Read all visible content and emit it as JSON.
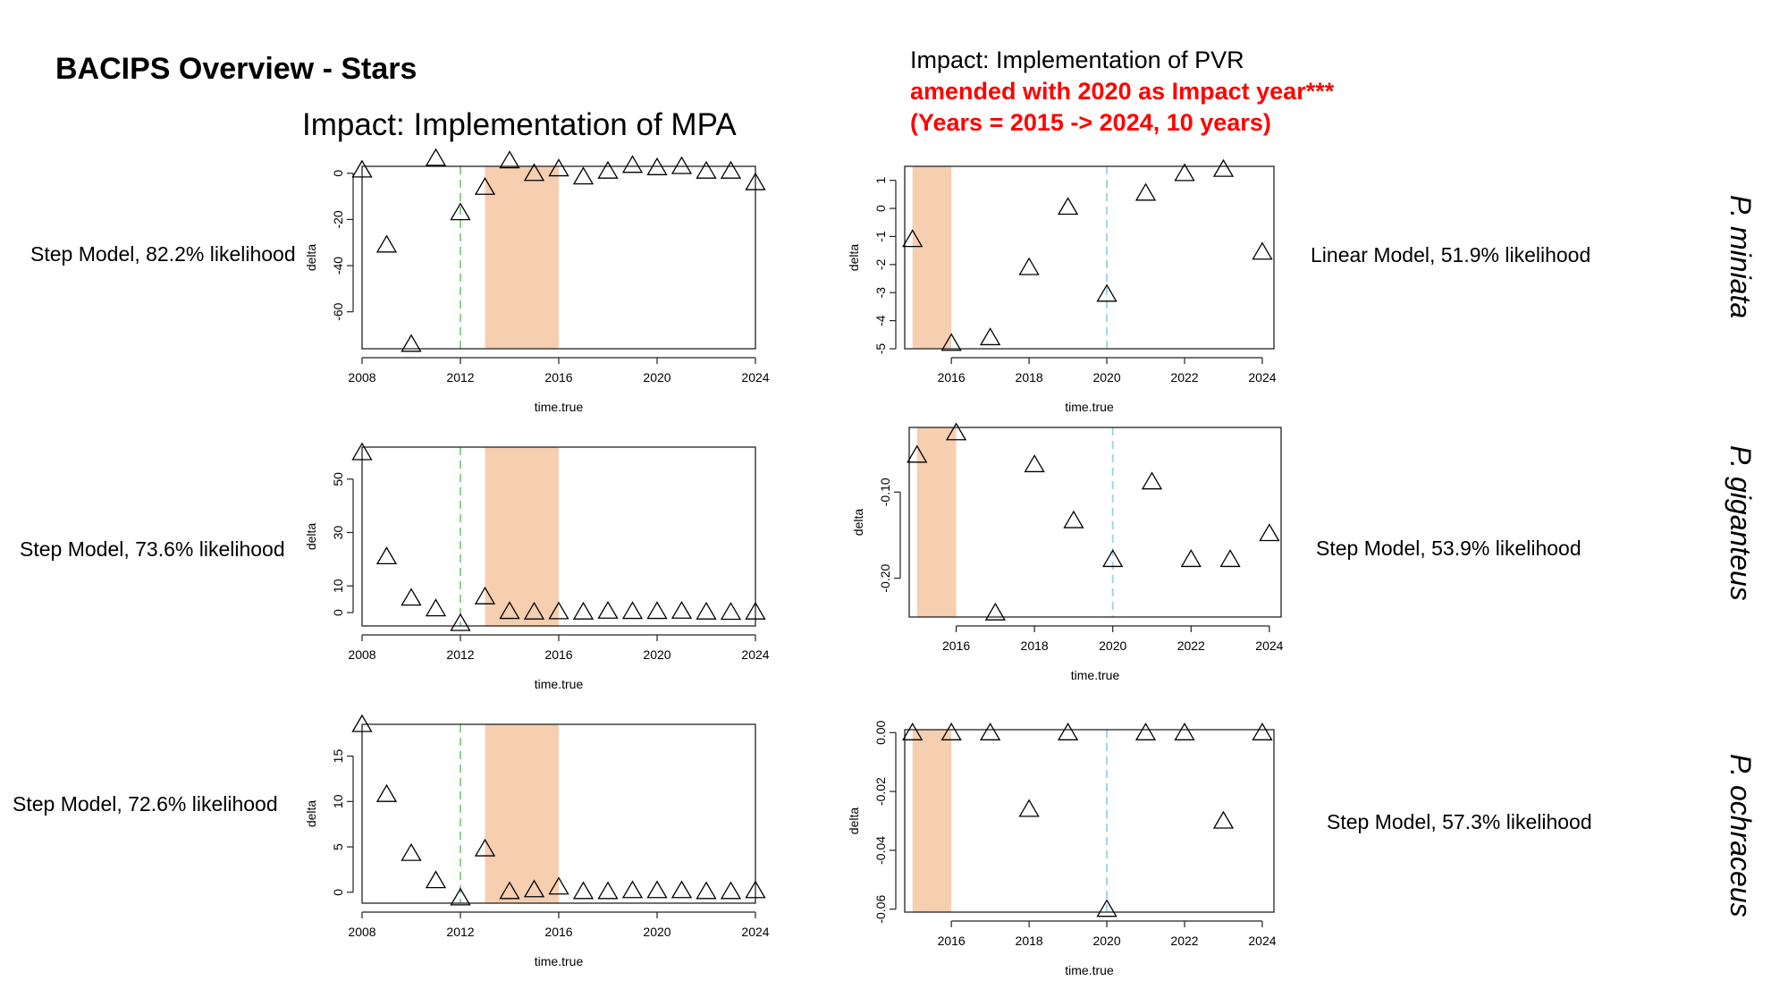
{
  "slide": {
    "title": "BACIPS Overview - Stars",
    "left_heading": "Impact: Implementation of MPA",
    "right_heading_line1": "Impact: Implementation of PVR",
    "right_heading_line2": "amended with 2020 as Impact year***",
    "right_heading_line3": "(Years = 2015 -> 2024, 10 years)"
  },
  "rows": [
    {
      "species": "P. miniata",
      "left_model": "Step Model, 82.2% likelihood",
      "right_model": "Linear Model, 51.9% likelihood"
    },
    {
      "species": "P. giganteus",
      "left_model": "Step Model, 73.6% likelihood",
      "right_model": "Step Model, 53.9% likelihood"
    },
    {
      "species": "P. ochraceus",
      "left_model": "Step Model, 72.6% likelihood",
      "right_model": "Step Model, 57.3% likelihood"
    }
  ],
  "colors": {
    "shaded_period": "#f6ceb0",
    "mpa_impact_line": "#8fcf8f",
    "pvr_impact_line": "#9fd6e6",
    "marker": "#000000"
  },
  "chart_data": [
    {
      "type": "scatter",
      "marker": "open-triangle",
      "xlabel": "time.true",
      "ylabel": "delta",
      "xlim": [
        2008,
        2024
      ],
      "ylim": [
        -76,
        3
      ],
      "xticks": [
        2008,
        2012,
        2016,
        2020,
        2024
      ],
      "xtick_labels": [
        "2008",
        "2012",
        "2016",
        "2020",
        "2024"
      ],
      "yticks": [
        0,
        -20,
        -40,
        -60
      ],
      "ytick_labels": [
        "0",
        "-20",
        "-40",
        "-60"
      ],
      "impact_line_x": 2012,
      "shaded_x": [
        2013,
        2016
      ],
      "x": [
        2008,
        2009,
        2010,
        2011,
        2012,
        2013,
        2014,
        2015,
        2016,
        2017,
        2018,
        2019,
        2020,
        2021,
        2022,
        2023,
        2024
      ],
      "y": [
        1.5,
        -31,
        -74,
        6.5,
        -17,
        -6,
        5.5,
        0,
        2,
        -1.5,
        1,
        3.5,
        2.5,
        3,
        1,
        1,
        -4
      ]
    },
    {
      "type": "scatter",
      "marker": "open-triangle",
      "xlabel": "time.true",
      "ylabel": "delta",
      "xlim": [
        2014.8,
        2024.3
      ],
      "ylim": [
        -5,
        1.5
      ],
      "xticks": [
        2016,
        2018,
        2020,
        2022,
        2024
      ],
      "xtick_labels": [
        "2016",
        "2018",
        "2020",
        "2022",
        "2024"
      ],
      "yticks": [
        1,
        0,
        -1,
        -2,
        -3,
        -4,
        -5
      ],
      "ytick_labels": [
        "1",
        "0",
        "-1",
        "-2",
        "-3",
        "-4",
        "-5"
      ],
      "impact_line_x": 2020,
      "shaded_x": [
        2015,
        2016
      ],
      "x": [
        2015,
        2016,
        2017,
        2018,
        2019,
        2020,
        2021,
        2022,
        2023,
        2024
      ],
      "y": [
        -1.1,
        -4.8,
        -4.6,
        -2.1,
        0.05,
        -3.05,
        0.55,
        1.25,
        1.4,
        -1.55
      ]
    },
    {
      "type": "scatter",
      "marker": "open-triangle",
      "xlabel": "time.true",
      "ylabel": "delta",
      "xlim": [
        2008,
        2024
      ],
      "ylim": [
        -5,
        62
      ],
      "xticks": [
        2008,
        2012,
        2016,
        2020,
        2024
      ],
      "xtick_labels": [
        "2008",
        "2012",
        "2016",
        "2020",
        "2024"
      ],
      "yticks": [
        0,
        10,
        30,
        50
      ],
      "ytick_labels": [
        "0",
        "10",
        "30",
        "50"
      ],
      "impact_line_x": 2012,
      "shaded_x": [
        2013,
        2016
      ],
      "x": [
        2008,
        2009,
        2010,
        2011,
        2012,
        2013,
        2014,
        2015,
        2016,
        2017,
        2018,
        2019,
        2020,
        2021,
        2022,
        2023,
        2024
      ],
      "y": [
        60,
        21,
        5.5,
        1.5,
        -4,
        6,
        0.5,
        0.3,
        0.4,
        0.3,
        0.6,
        0.5,
        0.5,
        0.6,
        0.3,
        0.2,
        0.3
      ]
    },
    {
      "type": "scatter",
      "marker": "open-triangle",
      "xlabel": "time.true",
      "ylabel": "delta",
      "xlim": [
        2014.8,
        2024.3
      ],
      "ylim": [
        -0.245,
        -0.025
      ],
      "xticks": [
        2016,
        2018,
        2020,
        2022,
        2024
      ],
      "xtick_labels": [
        "2016",
        "2018",
        "2020",
        "2022",
        "2024"
      ],
      "yticks": [
        -0.1,
        -0.2
      ],
      "ytick_labels": [
        "-0.10",
        "-0.20"
      ],
      "impact_line_x": 2020,
      "shaded_x": [
        2015,
        2016
      ],
      "x": [
        2015,
        2016,
        2017,
        2018,
        2019,
        2020,
        2021,
        2022,
        2023,
        2024
      ],
      "y": [
        -0.057,
        -0.031,
        -0.24,
        -0.068,
        -0.133,
        -0.178,
        -0.088,
        -0.178,
        -0.178,
        -0.148
      ]
    },
    {
      "type": "scatter",
      "marker": "open-triangle",
      "xlabel": "time.true",
      "ylabel": "delta",
      "xlim": [
        2008,
        2024
      ],
      "ylim": [
        -1.2,
        18.5
      ],
      "xticks": [
        2008,
        2012,
        2016,
        2020,
        2024
      ],
      "xtick_labels": [
        "2008",
        "2012",
        "2016",
        "2020",
        "2024"
      ],
      "yticks": [
        0,
        5,
        10,
        15
      ],
      "ytick_labels": [
        "0",
        "5",
        "10",
        "15"
      ],
      "impact_line_x": 2012,
      "shaded_x": [
        2013,
        2016
      ],
      "x": [
        2008,
        2009,
        2010,
        2011,
        2012,
        2013,
        2014,
        2015,
        2016,
        2017,
        2018,
        2019,
        2020,
        2021,
        2022,
        2023,
        2024
      ],
      "y": [
        18.5,
        10.8,
        4.3,
        1.3,
        -0.6,
        4.8,
        0.1,
        0.3,
        0.6,
        0.1,
        0.1,
        0.2,
        0.2,
        0.2,
        0.1,
        0.1,
        0.2
      ]
    },
    {
      "type": "scatter",
      "marker": "open-triangle",
      "xlabel": "time.true",
      "ylabel": "delta",
      "xlim": [
        2014.8,
        2024.3
      ],
      "ylim": [
        -0.061,
        0.001
      ],
      "xticks": [
        2016,
        2018,
        2020,
        2022,
        2024
      ],
      "xtick_labels": [
        "2016",
        "2018",
        "2020",
        "2022",
        "2024"
      ],
      "yticks": [
        0,
        -0.02,
        -0.04,
        -0.06
      ],
      "ytick_labels": [
        "0.00",
        "-0.02",
        "-0.04",
        "-0.06"
      ],
      "impact_line_x": 2020,
      "shaded_x": [
        2015,
        2016
      ],
      "x": [
        2015,
        2016,
        2017,
        2018,
        2019,
        2020,
        2021,
        2022,
        2023,
        2024
      ],
      "y": [
        0,
        0,
        0,
        -0.026,
        0,
        -0.06,
        0,
        0,
        -0.03,
        0
      ]
    }
  ]
}
